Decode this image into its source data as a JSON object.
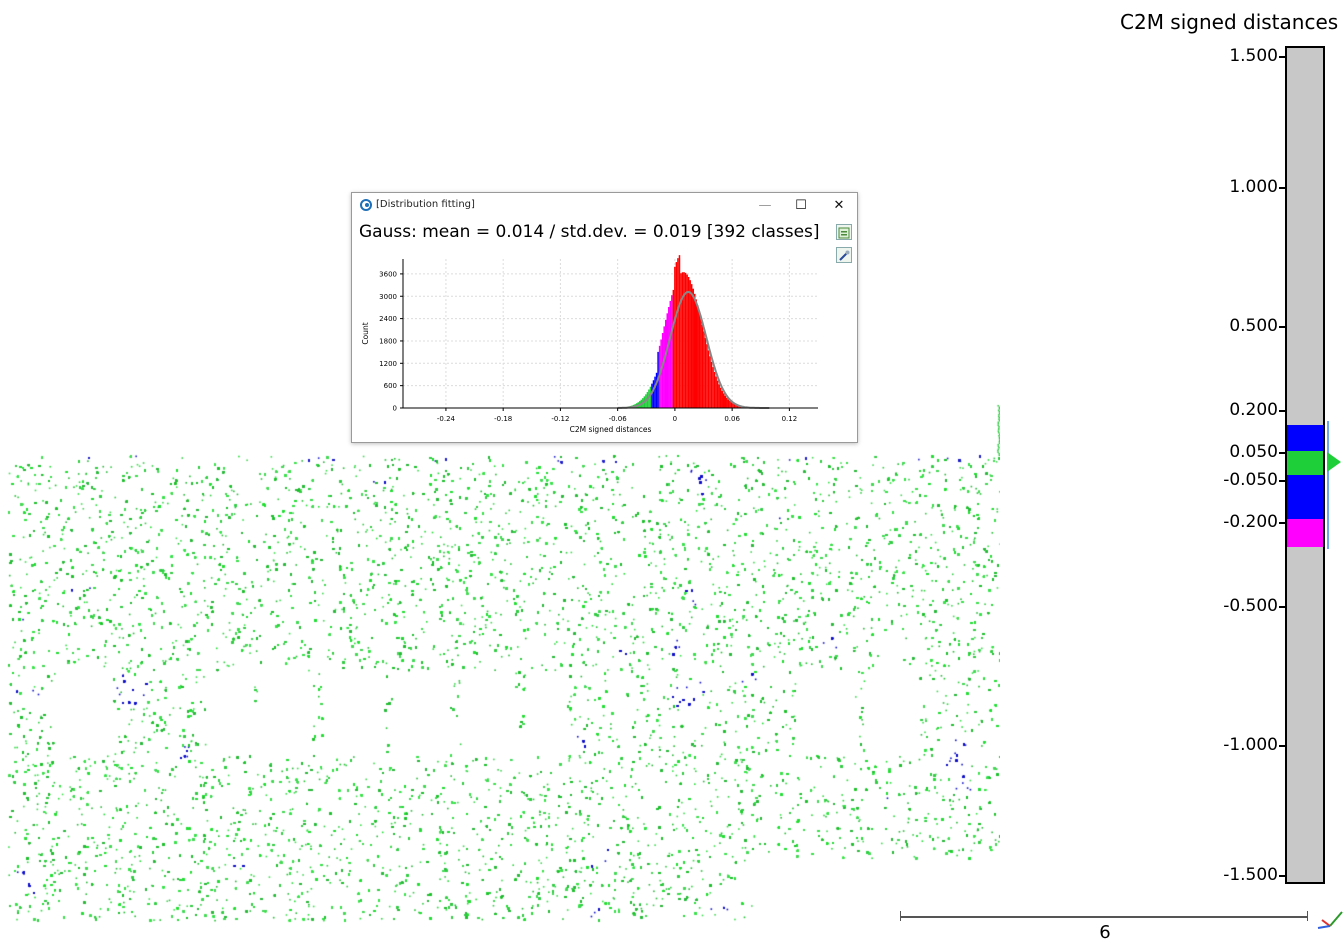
{
  "colorscale": {
    "title": "C2M signed distances",
    "labels": [
      "1.500",
      "1.000",
      "0.500",
      "0.200",
      "0.050",
      "-0.050",
      "-0.200",
      "-0.500",
      "-1.000",
      "-1.500"
    ],
    "colors": {
      "grey": "#c8c8c8",
      "blue": "#0000ff",
      "green": "#1fcf3a",
      "magenta": "#ff00ff"
    }
  },
  "dialog": {
    "window_title": "[Distribution fitting]",
    "minimize": "—",
    "maximize": "☐",
    "close": "✕",
    "heading": "Gauss: mean = 0.014 / std.dev. = 0.019 [392 classes]",
    "export_icon": "export-csv-icon",
    "settings_icon": "chart-settings-icon"
  },
  "chart_data": {
    "type": "bar",
    "title": "",
    "xlabel": "C2M signed distances",
    "ylabel": "Count",
    "xlim": [
      -0.285,
      0.15
    ],
    "ylim": [
      0,
      4000
    ],
    "x_ticks": [
      "-0.24",
      "-0.18",
      "-0.12",
      "-0.06",
      "0",
      "0.06",
      "0.12"
    ],
    "y_ticks": [
      "0",
      "600",
      "1200",
      "1800",
      "2400",
      "3000",
      "3600"
    ],
    "gauss_fit": {
      "mean": 0.014,
      "std": 0.019
    },
    "peak_count": 3800,
    "grid": true
  },
  "scene": {
    "scale_value": "6"
  }
}
